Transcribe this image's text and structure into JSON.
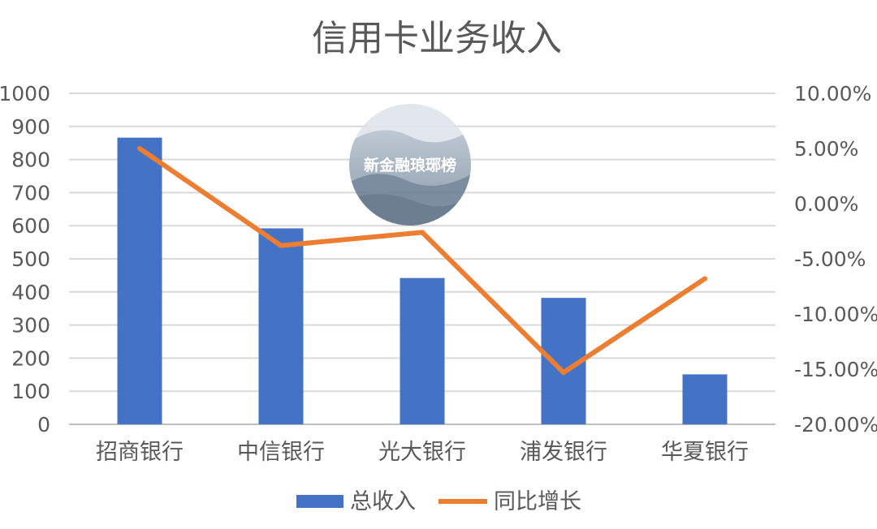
{
  "chart_data": {
    "type": "bar",
    "title": "信用卡业务收入",
    "categories": [
      "招商银行",
      "中信银行",
      "光大银行",
      "浦发银行",
      "华夏银行"
    ],
    "series": [
      {
        "name": "总收入",
        "type": "bar",
        "axis": "left",
        "color": "#4472C4",
        "values": [
          866,
          592,
          442,
          382,
          151
        ]
      },
      {
        "name": "同比增长",
        "type": "line",
        "axis": "right",
        "color": "#ED7D31",
        "values": [
          5.0,
          -3.8,
          -2.6,
          -15.3,
          -6.8
        ]
      }
    ],
    "y_left": {
      "min": 0,
      "max": 1000,
      "ticks": [
        "0",
        "100",
        "200",
        "300",
        "400",
        "500",
        "600",
        "700",
        "800",
        "900",
        "1000"
      ]
    },
    "y_right": {
      "min": -20,
      "max": 10,
      "ticks": [
        "-20.00%",
        "-15.00%",
        "-10.00%",
        "-5.00%",
        "0.00%",
        "5.00%",
        "10.00%"
      ]
    },
    "grid": true,
    "legend_position": "bottom"
  },
  "watermark": {
    "text": "新金融琅琊榜"
  }
}
